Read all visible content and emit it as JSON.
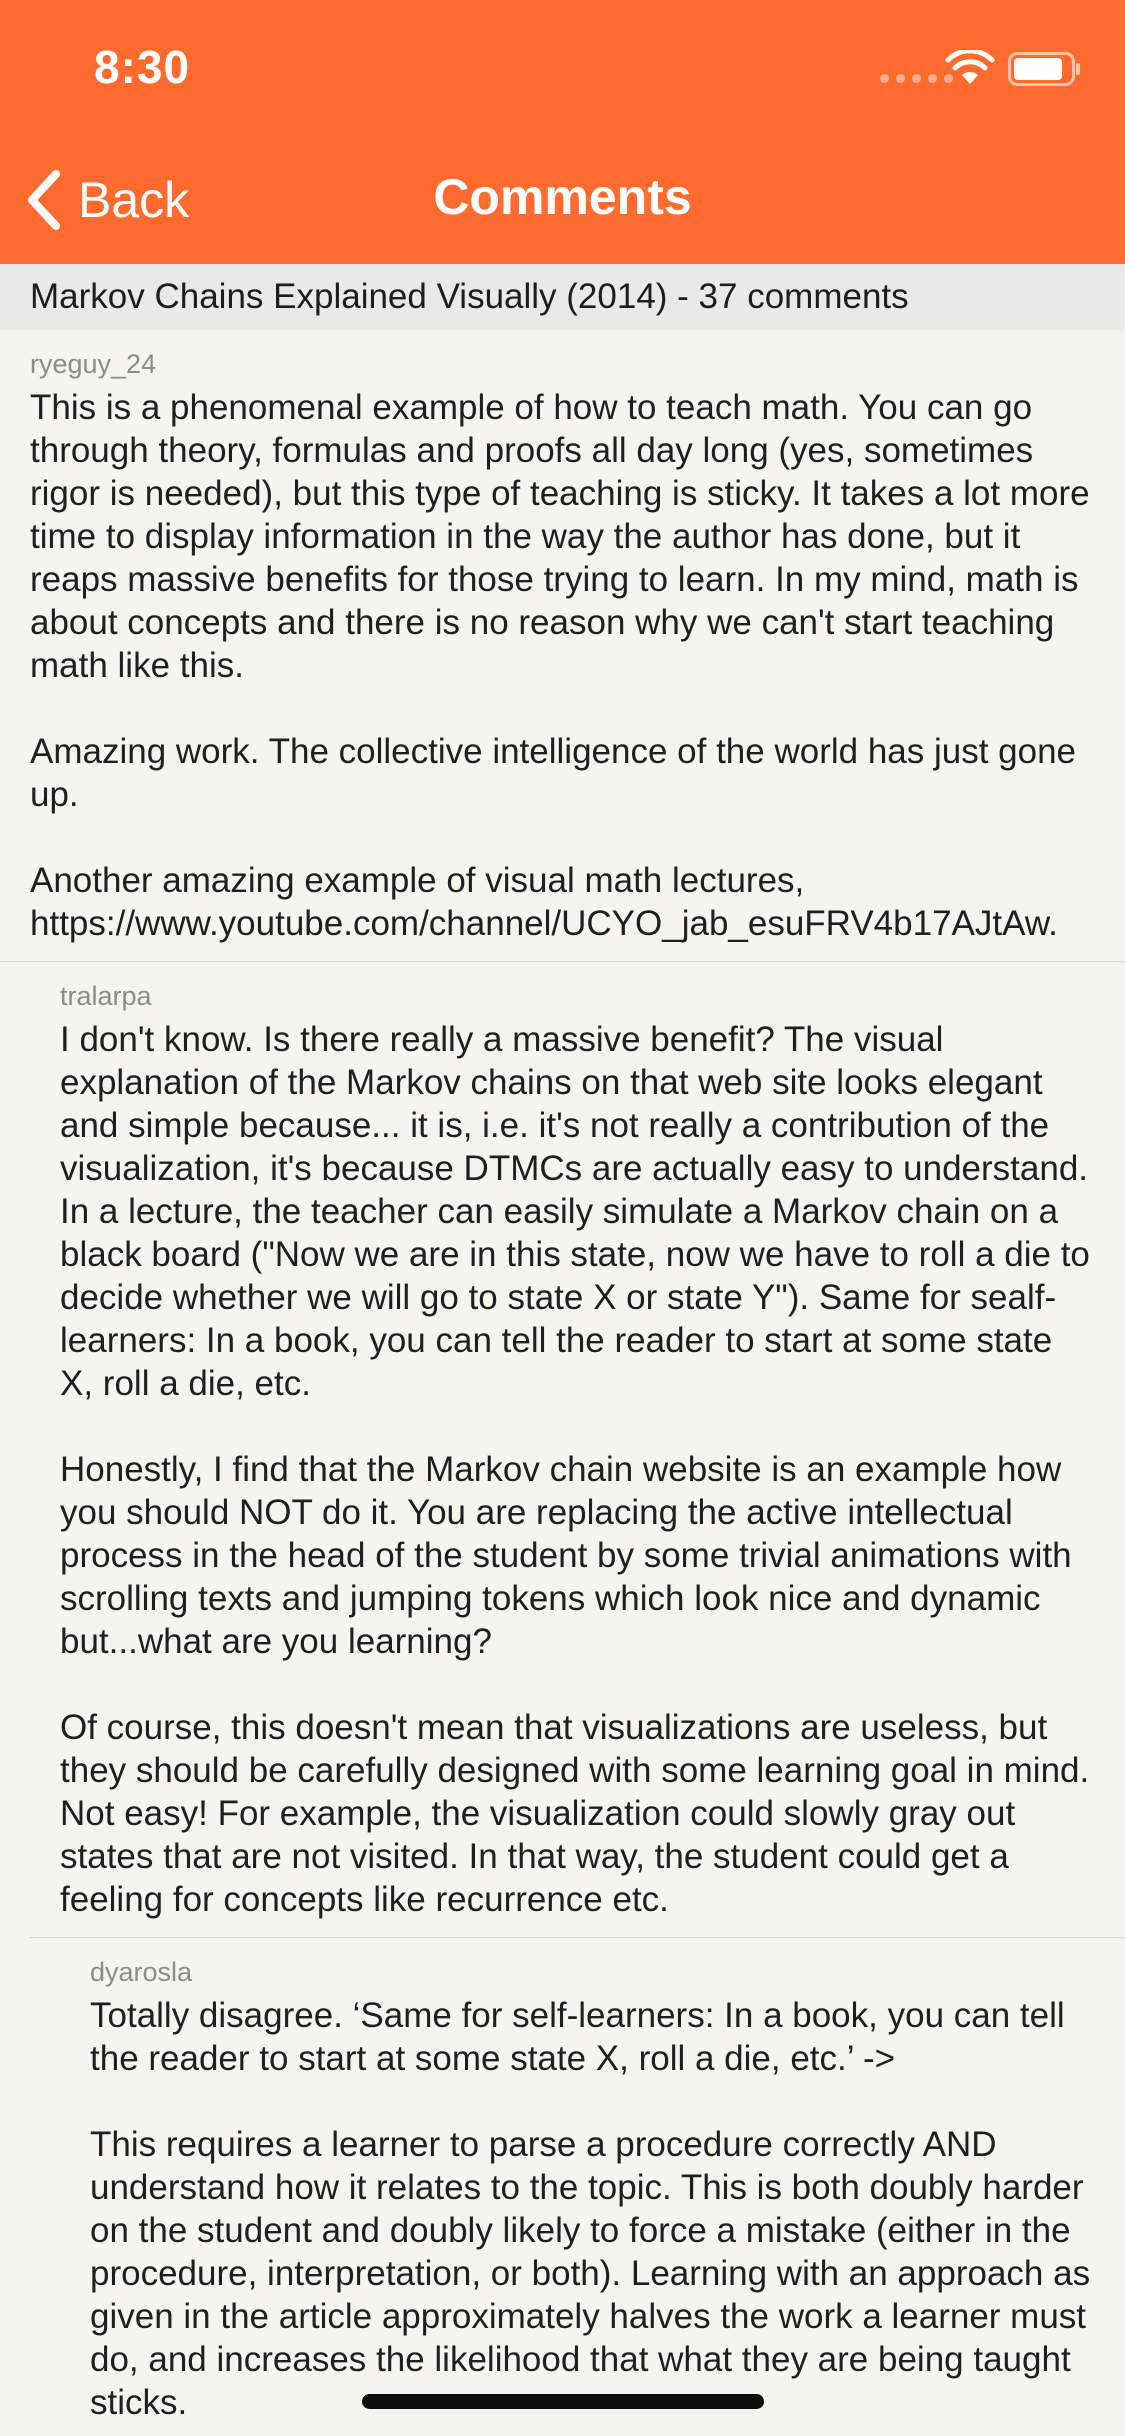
{
  "status_bar": {
    "time": "8:30"
  },
  "nav": {
    "back_label": "Back",
    "title": "Comments"
  },
  "story": {
    "header": "Markov Chains Explained Visually (2014) - 37 comments"
  },
  "comments": [
    {
      "author": "ryeguy_24",
      "paragraphs": [
        "This is a phenomenal example of how to teach math. You can go through theory, formulas and proofs all day long (yes, sometimes rigor is needed), but this type of teaching is sticky. It takes a lot more time to display information in the way the author has done, but it reaps massive benefits for those trying to learn.  In my mind, math is about concepts and there is no reason why we can't start teaching math like this.",
        "Amazing work. The collective intelligence of the world has just gone up.",
        "Another amazing example of visual math lectures, https://www.youtube.com/channel/UCYO_jab_esuFRV4b17AJtAw."
      ]
    },
    {
      "author": "tralarpa",
      "paragraphs": [
        "I don't know. Is there really a massive benefit? The visual explanation of the Markov chains on that web site looks elegant and simple because... it is, i.e. it's not really a contribution of the visualization, it's because DTMCs are actually easy to understand. In a lecture, the teacher can easily simulate a Markov chain on a black board (\"Now we are in this state, now we have to roll a die to decide whether we will go to state X or state Y\"). Same for sealf-learners: In a book, you can tell the reader to start at some state X, roll a die, etc.",
        "Honestly, I find that the Markov chain website is an example how you should NOT do it. You are replacing the active intellectual process in the head of the student by some trivial animations with scrolling texts and jumping tokens which look nice and dynamic but...what are you learning?",
        "Of course, this doesn't mean that visualizations are useless, but they should be carefully designed with some learning goal in mind. Not easy! For example, the visualization could slowly gray out states that are not visited. In that way, the student could get a feeling for concepts like recurrence etc."
      ]
    },
    {
      "author": "dyarosla",
      "paragraphs": [
        "Totally disagree. ‘Same for self-learners: In a book, you can tell the reader to start at some state X, roll a die, etc.’ ->",
        "This requires a learner to parse a procedure correctly AND understand how it relates to the topic. This is both doubly harder on the student and doubly likely to force a mistake (either in the procedure, interpretation, or both). Learning with an approach as given in the article approximately halves the work a learner must do, and increases the likelihood that what they are being taught sticks."
      ]
    }
  ]
}
